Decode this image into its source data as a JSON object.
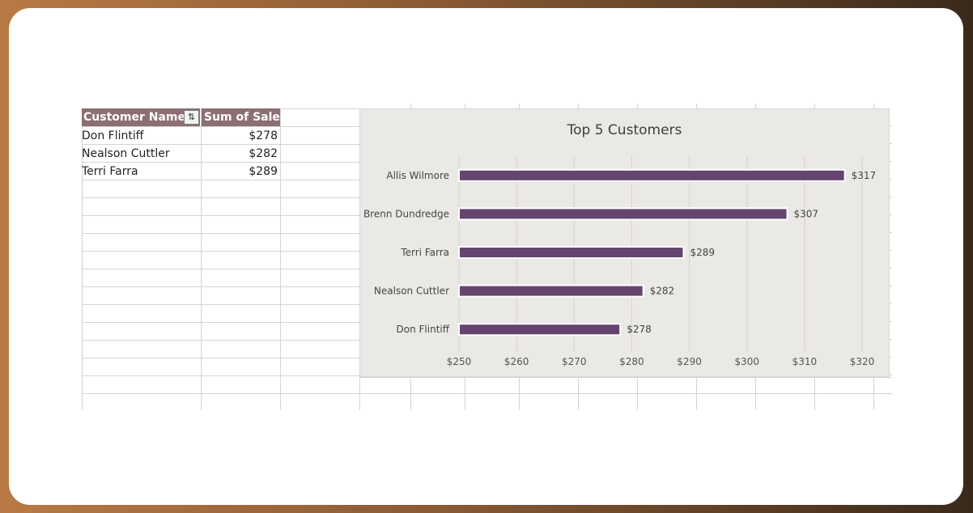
{
  "pivot": {
    "headers": {
      "customer": "Customer Name",
      "sales": "Sum of Sales"
    },
    "filter_icon": "filter-icon",
    "rows": [
      {
        "name": "Don Flintiff",
        "value": "$278"
      },
      {
        "name": "Nealson Cuttler",
        "value": "$282"
      },
      {
        "name": "Terri Farra",
        "value": "$289"
      }
    ]
  },
  "colors": {
    "bar": "#654570",
    "header": "#8b6f73",
    "chart_bg": "#ebe9e6"
  },
  "chart_data": {
    "type": "bar",
    "orientation": "horizontal",
    "title": "Top  5 Customers",
    "categories": [
      "Allis Wilmore",
      "Brenn Dundredge",
      "Terri Farra",
      "Nealson Cuttler",
      "Don Flintiff"
    ],
    "values": [
      317,
      307,
      289,
      282,
      278
    ],
    "data_labels": [
      "$317",
      "$307",
      "$289",
      "$282",
      "$278"
    ],
    "xlim": [
      250,
      320
    ],
    "x_ticks": [
      250,
      260,
      270,
      280,
      290,
      300,
      310,
      320
    ],
    "x_tick_labels": [
      "$250",
      "$260",
      "$270",
      "$280",
      "$290",
      "$300",
      "$310",
      "$320"
    ],
    "grid": true,
    "legend": "none"
  }
}
